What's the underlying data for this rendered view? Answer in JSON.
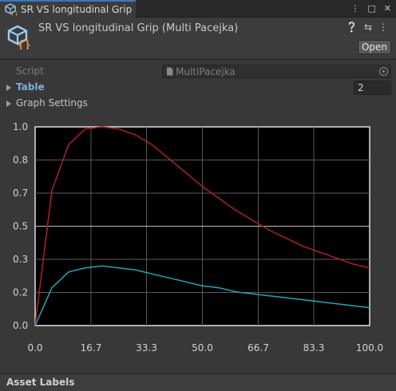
{
  "tab": {
    "title": "SR VS longitudinal Grip",
    "icon": "scriptable-object-icon"
  },
  "header": {
    "title": "SR VS longitudinal Grip (Multi Pacejka)",
    "open_label": "Open",
    "tools": [
      "help-icon",
      "preset-icon",
      "more-icon"
    ]
  },
  "fields": {
    "script_label": "Script",
    "script_value": "MultiPacejka",
    "table_label": "Table",
    "table_count": "2",
    "graph_settings_label": "Graph Settings"
  },
  "chart_data": {
    "type": "line",
    "xlim": [
      0,
      100
    ],
    "ylim": [
      0,
      1
    ],
    "xticks": [
      "0.0",
      "16.7",
      "33.3",
      "50.0",
      "66.7",
      "83.3",
      "100.0"
    ],
    "yticks": [
      "0.0",
      "0.2",
      "0.3",
      "0.5",
      "0.7",
      "0.8",
      "1.0"
    ],
    "ytick_values": [
      0,
      0.1667,
      0.3333,
      0.5,
      0.6667,
      0.8333,
      1.0
    ],
    "grid": true,
    "background": "#000000",
    "series": [
      {
        "color": "#b0202a",
        "x": [
          0,
          5,
          10,
          15,
          20,
          25,
          30,
          35,
          40,
          45,
          50,
          55,
          60,
          65,
          70,
          75,
          80,
          85,
          90,
          95,
          100
        ],
        "y": [
          0,
          0.68,
          0.91,
          0.99,
          1.0,
          0.99,
          0.96,
          0.91,
          0.84,
          0.77,
          0.7,
          0.64,
          0.58,
          0.53,
          0.48,
          0.44,
          0.4,
          0.37,
          0.34,
          0.31,
          0.29
        ]
      },
      {
        "color": "#20a8b8",
        "x": [
          0,
          5,
          10,
          15,
          20,
          25,
          30,
          35,
          40,
          45,
          50,
          55,
          60,
          65,
          70,
          75,
          80,
          85,
          90,
          95,
          100
        ],
        "y": [
          0,
          0.19,
          0.27,
          0.29,
          0.3,
          0.29,
          0.28,
          0.26,
          0.24,
          0.22,
          0.2,
          0.19,
          0.17,
          0.16,
          0.15,
          0.14,
          0.13,
          0.12,
          0.11,
          0.1,
          0.09
        ]
      }
    ]
  },
  "footer": {
    "asset_labels": "Asset Labels"
  }
}
